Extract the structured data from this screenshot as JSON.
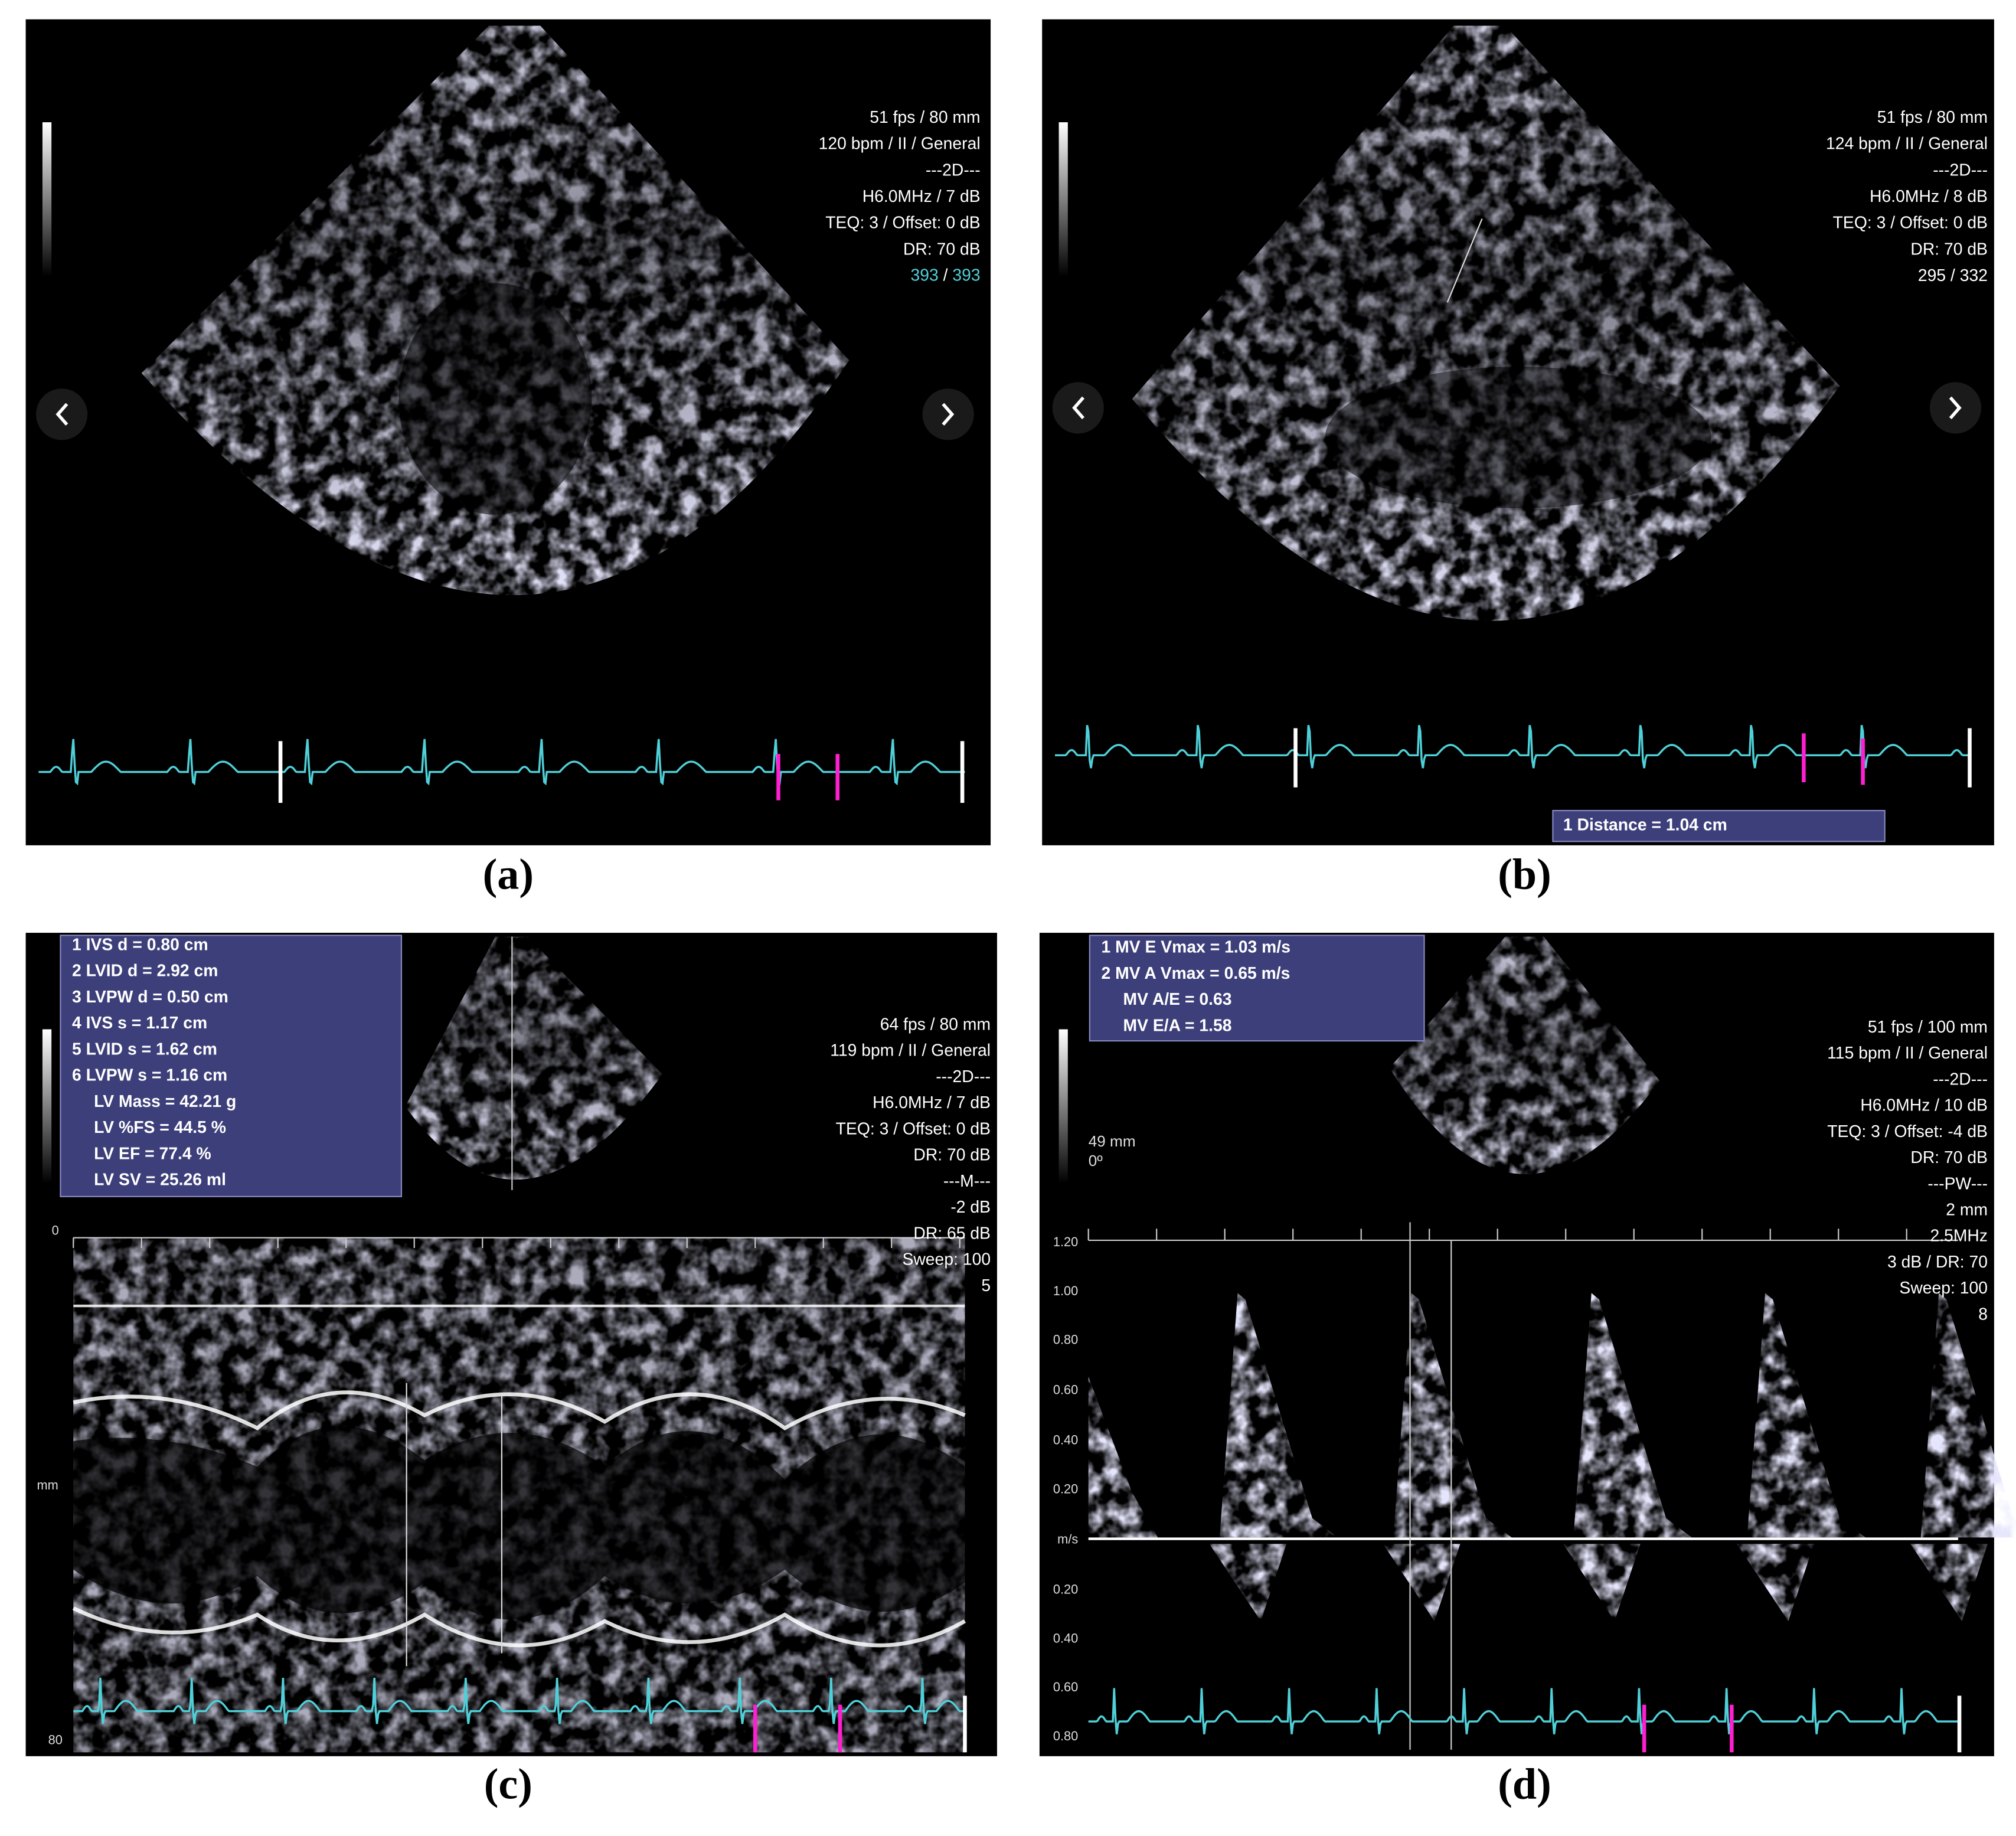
{
  "panels": [
    {
      "label": "(a)",
      "info": [
        "51 fps / 80 mm",
        "120 bpm / II / General",
        "---2D---",
        "H6.0MHz / 7 dB",
        "TEQ: 3 / Offset: 0 dB",
        "DR: 70 dB"
      ],
      "counter": [
        "393",
        "/",
        "393"
      ]
    },
    {
      "label": "(b)",
      "info": [
        "51 fps / 80 mm",
        "124 bpm / II / General",
        "---2D---",
        "H6.0MHz / 8 dB",
        "TEQ: 3 / Offset: 0 dB",
        "DR: 70 dB",
        "295 / 332"
      ],
      "measurement": "1  Distance = 1.04 cm"
    },
    {
      "label": "(c)",
      "measurements": [
        "1  IVS d = 0.80 cm",
        "2  LVID d = 2.92 cm",
        "3  LVPW d = 0.50 cm",
        "4  IVS s = 1.17 cm",
        "5  LVID s = 1.62 cm",
        "6  LVPW s = 1.16 cm",
        "LV Mass = 42.21 g",
        "LV %FS = 44.5 %",
        "LV EF = 77.4 %",
        "LV SV = 25.26 ml"
      ],
      "info": [
        "64 fps / 80 mm",
        "119 bpm / II / General",
        "---2D---",
        "H6.0MHz / 7 dB",
        "TEQ: 3 / Offset: 0 dB",
        "DR: 70 dB",
        "---M---",
        "-2 dB",
        "DR: 65 dB",
        "Sweep: 100",
        "5"
      ],
      "depth": [
        "0",
        "mm",
        "80"
      ]
    },
    {
      "label": "(d)",
      "measurements": [
        "1  MV E Vmax = 1.03 m/s",
        "2  MV A Vmax = 0.65 m/s",
        "MV A/E = 0.63",
        "MV E/A = 1.58"
      ],
      "info": [
        "51 fps / 100 mm",
        "115 bpm / II / General",
        "---2D---",
        "H6.0MHz / 10 dB",
        "TEQ: 3 / Offset: -4 dB",
        "DR: 70 dB",
        "---PW---",
        "2 mm",
        "2.5MHz",
        "3 dB / DR: 70",
        "Sweep: 100",
        "8"
      ],
      "gate": [
        "49 mm",
        "0º"
      ],
      "scale": [
        "1.20",
        "1.00",
        "0.80",
        "0.60",
        "0.40",
        "0.20",
        "m/s",
        "0.20",
        "0.40",
        "0.60",
        "0.80"
      ]
    }
  ]
}
